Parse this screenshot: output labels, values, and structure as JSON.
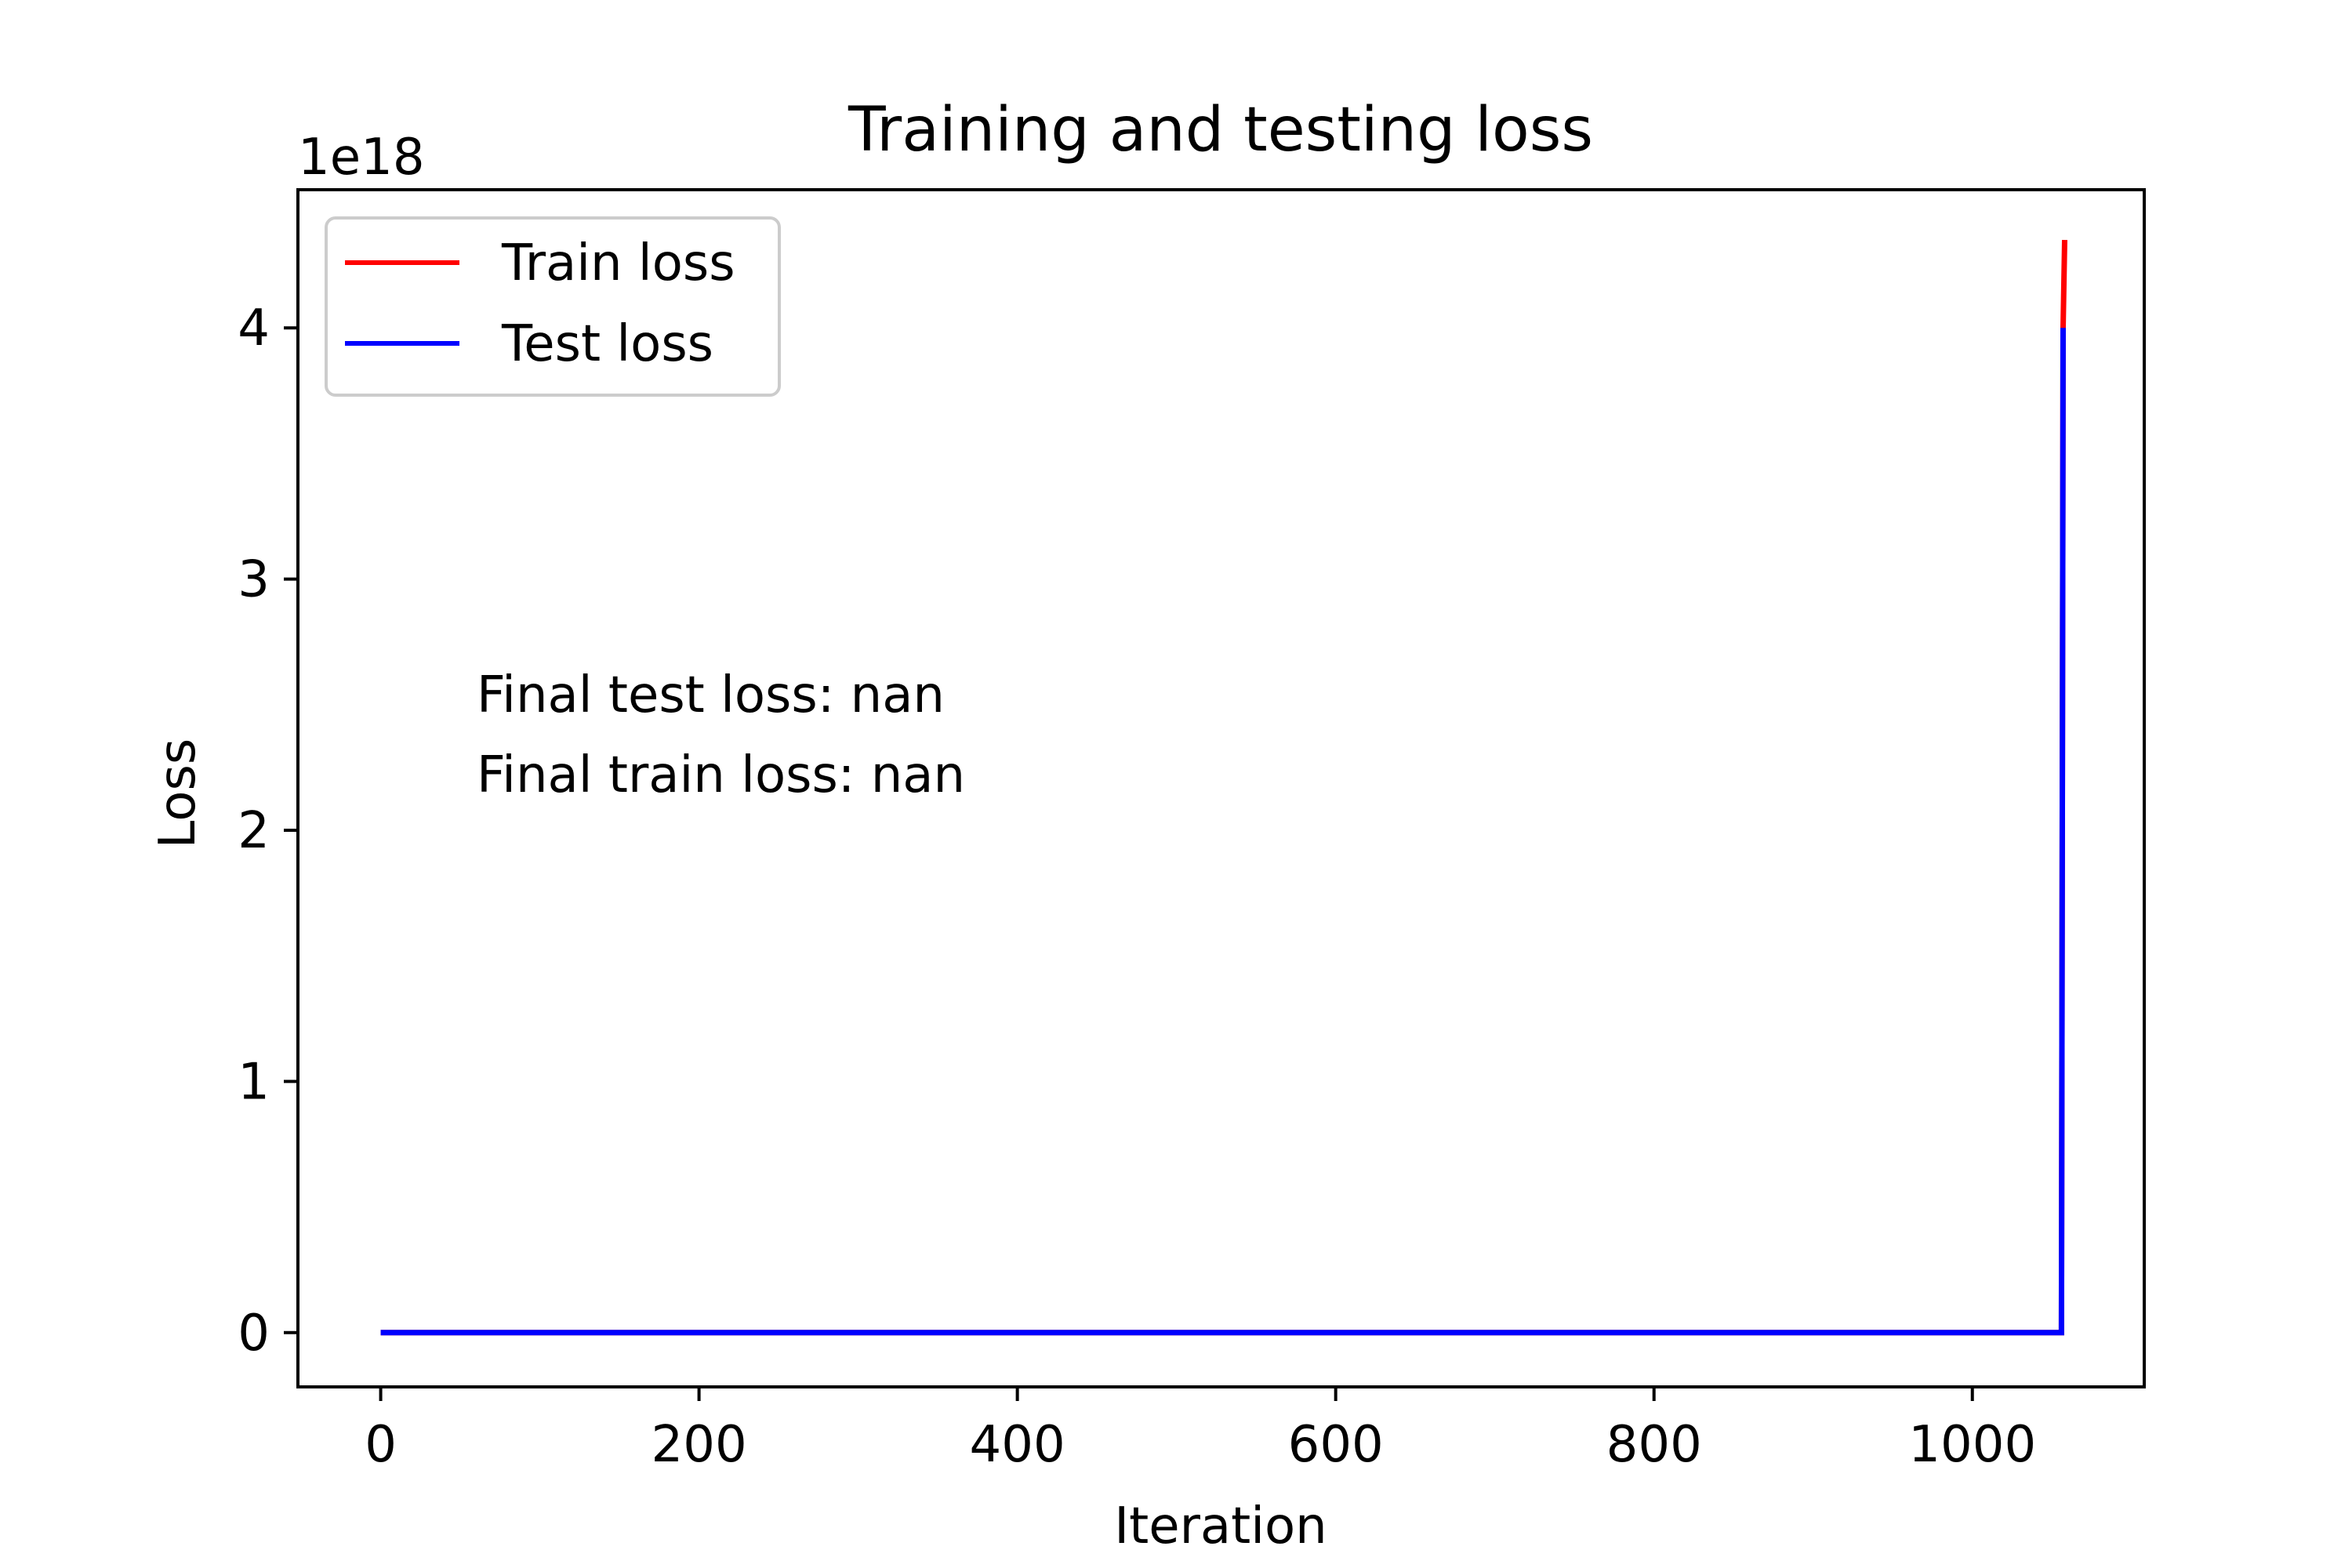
{
  "chart_data": {
    "type": "line",
    "title": "Training and testing loss",
    "xlabel": "Iteration",
    "ylabel": "Loss",
    "y_offset_label": "1e18",
    "xlim": [
      -52,
      1108
    ],
    "ylim": [
      -0.216,
      4.55
    ],
    "x_ticks": [
      0,
      200,
      400,
      600,
      800,
      1000
    ],
    "x_tick_labels": [
      "0",
      "200",
      "400",
      "600",
      "800",
      "1000"
    ],
    "y_ticks": [
      0,
      1,
      2,
      3,
      4
    ],
    "y_tick_labels": [
      "0",
      "1",
      "2",
      "3",
      "4"
    ],
    "grid": false,
    "legend": "upper-left",
    "series": [
      {
        "name": "Train loss",
        "color": "#ff0000",
        "x": [
          0,
          1056,
          1057,
          1058
        ],
        "y": [
          0,
          0,
          4.0,
          4.35
        ]
      },
      {
        "name": "Test loss",
        "color": "#0000ff",
        "x": [
          0,
          1056,
          1057
        ],
        "y": [
          0,
          0,
          4.0
        ]
      }
    ],
    "annotations": [
      "Final test loss: nan",
      "Final train loss: nan"
    ]
  }
}
